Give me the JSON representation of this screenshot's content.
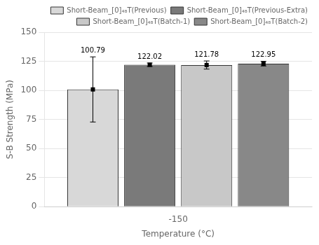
{
  "chart_data": {
    "type": "bar",
    "xlabel": "Temperature (°C)",
    "ylabel": "S-B Strength (MPa)",
    "categories": [
      "-150"
    ],
    "series": [
      {
        "name": "Short-Beam_[0]₄₈T(Previous)",
        "color": "#d8d8d8",
        "values": [
          100.79
        ],
        "errors": [
          28.0
        ]
      },
      {
        "name": "Short-Beam_[0]₄₈T(Previous-Extra)",
        "color": "#7a7a7a",
        "values": [
          122.02
        ],
        "errors": [
          1.5
        ]
      },
      {
        "name": "Short-Beam_[0]₄₈T(Batch-1)",
        "color": "#c8c8c8",
        "values": [
          121.78
        ],
        "errors": [
          3.5
        ]
      },
      {
        "name": "Short-Beam_[0]₄₈T(Batch-2)",
        "color": "#888888",
        "values": [
          122.95
        ],
        "errors": [
          2.0
        ]
      }
    ],
    "ylim": [
      0,
      150
    ],
    "yticks": [
      0,
      25,
      50,
      75,
      100,
      125,
      150
    ],
    "grid": true,
    "legend": "upper right",
    "data_labels": true
  }
}
